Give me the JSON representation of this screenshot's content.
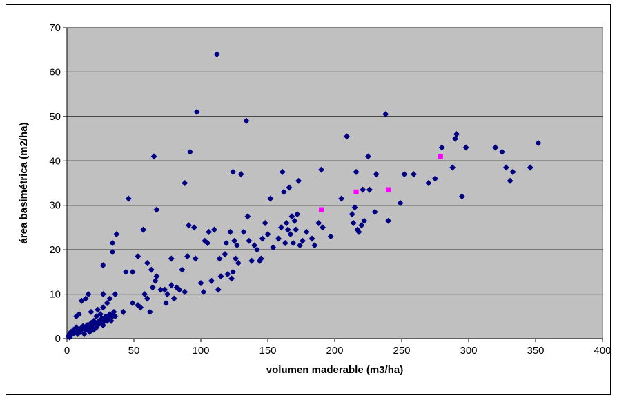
{
  "chart_data": {
    "type": "scatter",
    "title": "",
    "xlabel": "volumen maderable (m3/ha)",
    "ylabel": "área basimétrica (m2/ha)",
    "xlim": [
      0,
      400
    ],
    "ylim": [
      0,
      70
    ],
    "x_ticks": [
      0,
      50,
      100,
      150,
      200,
      250,
      300,
      350,
      400
    ],
    "y_ticks": [
      0,
      10,
      20,
      30,
      40,
      50,
      60,
      70
    ],
    "grid": "horizontal",
    "legend": "none",
    "plot_background": "#C0C0C0",
    "series": [
      {
        "color": "#000080",
        "marker": "diamond",
        "points": [
          [
            1,
            0.5
          ],
          [
            2,
            1
          ],
          [
            3,
            1.5
          ],
          [
            4,
            1
          ],
          [
            5,
            2
          ],
          [
            6,
            1.5
          ],
          [
            7,
            2.5
          ],
          [
            8,
            1
          ],
          [
            9,
            2
          ],
          [
            10,
            1.5
          ],
          [
            11,
            2
          ],
          [
            12,
            2.5
          ],
          [
            13,
            1
          ],
          [
            14,
            2
          ],
          [
            15,
            3
          ],
          [
            16,
            2
          ],
          [
            17,
            1.5
          ],
          [
            18,
            2.5
          ],
          [
            19,
            3
          ],
          [
            20,
            2
          ],
          [
            21,
            3.5
          ],
          [
            22,
            2.5
          ],
          [
            23,
            3
          ],
          [
            24,
            4
          ],
          [
            25,
            3.5
          ],
          [
            26,
            4.5
          ],
          [
            27,
            3
          ],
          [
            28,
            4
          ],
          [
            29,
            5
          ],
          [
            30,
            4
          ],
          [
            31,
            4.5
          ],
          [
            32,
            5.5
          ],
          [
            33,
            4
          ],
          [
            34,
            5
          ],
          [
            35,
            6
          ],
          [
            36,
            5
          ],
          [
            2,
            0.3
          ],
          [
            3,
            0.8
          ],
          [
            5,
            1.2
          ],
          [
            8,
            1.8
          ],
          [
            10,
            2.2
          ],
          [
            12,
            2.8
          ],
          [
            15,
            2
          ],
          [
            18,
            3.5
          ],
          [
            20,
            4
          ],
          [
            22,
            5
          ],
          [
            25,
            5.5
          ],
          [
            7,
            5
          ],
          [
            9,
            5.5
          ],
          [
            16,
            10
          ],
          [
            11,
            8.5
          ],
          [
            14,
            9
          ],
          [
            18,
            6
          ],
          [
            23,
            6.5
          ],
          [
            27,
            7
          ],
          [
            30,
            8
          ],
          [
            32,
            9
          ],
          [
            36,
            10
          ],
          [
            27,
            10
          ],
          [
            27,
            16.5
          ],
          [
            34,
            19.5
          ],
          [
            34,
            21.5
          ],
          [
            37,
            23.5
          ],
          [
            42,
            6
          ],
          [
            44,
            15
          ],
          [
            46,
            31.5
          ],
          [
            49,
            8
          ],
          [
            49,
            15
          ],
          [
            53,
            7.5
          ],
          [
            53,
            18.5
          ],
          [
            55,
            7
          ],
          [
            57,
            24.5
          ],
          [
            58,
            10
          ],
          [
            60,
            9
          ],
          [
            60,
            17
          ],
          [
            62,
            6
          ],
          [
            63,
            15.5
          ],
          [
            64,
            11.5
          ],
          [
            65,
            41
          ],
          [
            66,
            13
          ],
          [
            67,
            29
          ],
          [
            67,
            14
          ],
          [
            70,
            11
          ],
          [
            73,
            11
          ],
          [
            74,
            8
          ],
          [
            75,
            10
          ],
          [
            78,
            12
          ],
          [
            78,
            18
          ],
          [
            80,
            9
          ],
          [
            82,
            11.5
          ],
          [
            84,
            11
          ],
          [
            86,
            15.5
          ],
          [
            88,
            10.5
          ],
          [
            88,
            35
          ],
          [
            90,
            18.5
          ],
          [
            91,
            25.5
          ],
          [
            92,
            42
          ],
          [
            95,
            25
          ],
          [
            96,
            18
          ],
          [
            97,
            51
          ],
          [
            100,
            12.5
          ],
          [
            102,
            10.5
          ],
          [
            103,
            22
          ],
          [
            105,
            21.5
          ],
          [
            106,
            24
          ],
          [
            108,
            13
          ],
          [
            110,
            24.5
          ],
          [
            112,
            64
          ],
          [
            113,
            11
          ],
          [
            114,
            18
          ],
          [
            115,
            14
          ],
          [
            118,
            19
          ],
          [
            119,
            21.5
          ],
          [
            120,
            14.5
          ],
          [
            122,
            24
          ],
          [
            123,
            13.5
          ],
          [
            124,
            15
          ],
          [
            124,
            37.5
          ],
          [
            125,
            22
          ],
          [
            126,
            18
          ],
          [
            127,
            21
          ],
          [
            128,
            17
          ],
          [
            130,
            37
          ],
          [
            132,
            24
          ],
          [
            134,
            49
          ],
          [
            135,
            27.5
          ],
          [
            136,
            22
          ],
          [
            138,
            17.5
          ],
          [
            140,
            21
          ],
          [
            142,
            20
          ],
          [
            144,
            17.5
          ],
          [
            145,
            18
          ],
          [
            146,
            22.5
          ],
          [
            148,
            26
          ],
          [
            150,
            23.5
          ],
          [
            152,
            31.5
          ],
          [
            154,
            20.5
          ],
          [
            158,
            22.5
          ],
          [
            160,
            25
          ],
          [
            161,
            37.5
          ],
          [
            162,
            33
          ],
          [
            163,
            21.5
          ],
          [
            164,
            26
          ],
          [
            165,
            24.5
          ],
          [
            166,
            34
          ],
          [
            167,
            23.5
          ],
          [
            168,
            27.5
          ],
          [
            169,
            21.5
          ],
          [
            170,
            26.5
          ],
          [
            171,
            24.5
          ],
          [
            172,
            28
          ],
          [
            173,
            35.5
          ],
          [
            174,
            21
          ],
          [
            176,
            22
          ],
          [
            179,
            24
          ],
          [
            183,
            22.5
          ],
          [
            185,
            21
          ],
          [
            188,
            26
          ],
          [
            190,
            38
          ],
          [
            191,
            25
          ],
          [
            197,
            23
          ],
          [
            205,
            31.5
          ],
          [
            209,
            45.5
          ],
          [
            213,
            28
          ],
          [
            214,
            26
          ],
          [
            215,
            29.5
          ],
          [
            216,
            37.5
          ],
          [
            217,
            24.5
          ],
          [
            218,
            24
          ],
          [
            220,
            25.5
          ],
          [
            221,
            33.5
          ],
          [
            222,
            26.5
          ],
          [
            225,
            41
          ],
          [
            226,
            33.5
          ],
          [
            230,
            28.5
          ],
          [
            231,
            37
          ],
          [
            238,
            50.5
          ],
          [
            240,
            26.5
          ],
          [
            249,
            30.5
          ],
          [
            252,
            37
          ],
          [
            259,
            37
          ],
          [
            270,
            35
          ],
          [
            275,
            36
          ],
          [
            280,
            43
          ],
          [
            288,
            38.5
          ],
          [
            290,
            45
          ],
          [
            291,
            46
          ],
          [
            295,
            32
          ],
          [
            298,
            43
          ],
          [
            320,
            43
          ],
          [
            325,
            42
          ],
          [
            328,
            38.5
          ],
          [
            331,
            35.5
          ],
          [
            333,
            37.5
          ],
          [
            346,
            38.5
          ],
          [
            352,
            44
          ]
        ]
      },
      {
        "color": "#FF00FF",
        "marker": "square",
        "points": [
          [
            190,
            29
          ],
          [
            216,
            33
          ],
          [
            240,
            33.5
          ],
          [
            279,
            41
          ]
        ]
      }
    ]
  }
}
